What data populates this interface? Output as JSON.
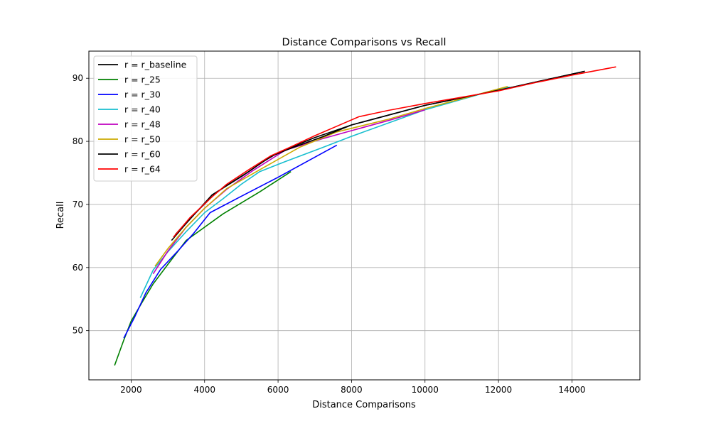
{
  "chart_data": {
    "type": "line",
    "title": "Distance Comparisons vs Recall",
    "xlabel": "Distance Comparisons",
    "ylabel": "Recall",
    "xlim": [
      850,
      15850
    ],
    "ylim": [
      42.2,
      94.3
    ],
    "xticks": [
      2000,
      4000,
      6000,
      8000,
      10000,
      12000,
      14000
    ],
    "yticks": [
      50,
      60,
      70,
      80,
      90
    ],
    "grid": true,
    "legend_position": "top-left",
    "series": [
      {
        "name": "r = r_baseline",
        "color": "#000000",
        "x": [
          3100,
          3500,
          4200,
          4500,
          5000,
          5600,
          6000,
          7000,
          8000,
          10000,
          12000,
          14350
        ],
        "y": [
          64.3,
          67.0,
          71.5,
          72.6,
          74.4,
          76.8,
          78.2,
          80.6,
          82.6,
          85.7,
          88.1,
          91.1
        ]
      },
      {
        "name": "r = r_25",
        "color": "#008000",
        "x": [
          1550,
          1800,
          2000,
          2300,
          2600,
          3000,
          3500,
          4500,
          5500,
          6350
        ],
        "y": [
          44.5,
          48.5,
          51.5,
          54.5,
          57.4,
          60.5,
          64.3,
          68.5,
          72.0,
          75.2
        ]
      },
      {
        "name": "r = r_30",
        "color": "#0000ff",
        "x": [
          1800,
          2100,
          2400,
          2800,
          3300,
          3700,
          4150,
          5000,
          6000,
          7600
        ],
        "y": [
          48.8,
          52.2,
          56.0,
          59.7,
          62.8,
          65.4,
          68.7,
          71.3,
          74.3,
          79.4
        ]
      },
      {
        "name": "r = r_40",
        "color": "#17becf",
        "x": [
          2250,
          2600,
          3000,
          3500,
          4000,
          4500,
          5000,
          5500,
          6200,
          7200,
          8000,
          10000,
          12000,
          12300
        ],
        "y": [
          55.2,
          59.6,
          62.5,
          65.7,
          68.7,
          70.9,
          73.2,
          75.2,
          76.8,
          79.0,
          80.8,
          85.0,
          88.3,
          88.6
        ]
      },
      {
        "name": "r = r_48",
        "color": "#bf00bf",
        "x": [
          2600,
          3000,
          3500,
          4000,
          4600,
          5300,
          6200,
          7200,
          8000,
          9000,
          10000
        ],
        "y": [
          59.0,
          62.6,
          66.4,
          69.4,
          72.4,
          75.3,
          78.6,
          80.4,
          81.7,
          83.3,
          85.0
        ]
      },
      {
        "name": "r = r_50",
        "color": "#ccaa00",
        "x": [
          2650,
          3000,
          3500,
          4000,
          4600,
          5500,
          6600,
          7600,
          9000,
          10000,
          12250
        ],
        "y": [
          60.2,
          63.0,
          66.4,
          69.4,
          72.5,
          75.5,
          79.1,
          81.5,
          83.5,
          85.2,
          88.7
        ]
      },
      {
        "name": "r = r_60",
        "color": "#000000",
        "x": [
          3200,
          3600,
          4300,
          4600,
          5200,
          5800,
          6300,
          7200,
          8000,
          10000,
          12000,
          14350
        ],
        "y": [
          65.2,
          67.8,
          71.8,
          73.0,
          75.2,
          77.6,
          78.8,
          80.7,
          82.6,
          85.7,
          88.1,
          91.1
        ]
      },
      {
        "name": "r = r_64",
        "color": "#ff0000",
        "x": [
          3150,
          3600,
          4200,
          4600,
          5200,
          5800,
          6300,
          7000,
          7800,
          8200,
          9000,
          10000,
          11000,
          12000,
          13000,
          14000,
          15200
        ],
        "y": [
          64.8,
          67.9,
          71.2,
          73.2,
          75.5,
          77.7,
          79.0,
          80.9,
          82.9,
          83.9,
          84.9,
          86.0,
          87.0,
          88.0,
          89.3,
          90.5,
          91.8
        ]
      }
    ]
  }
}
